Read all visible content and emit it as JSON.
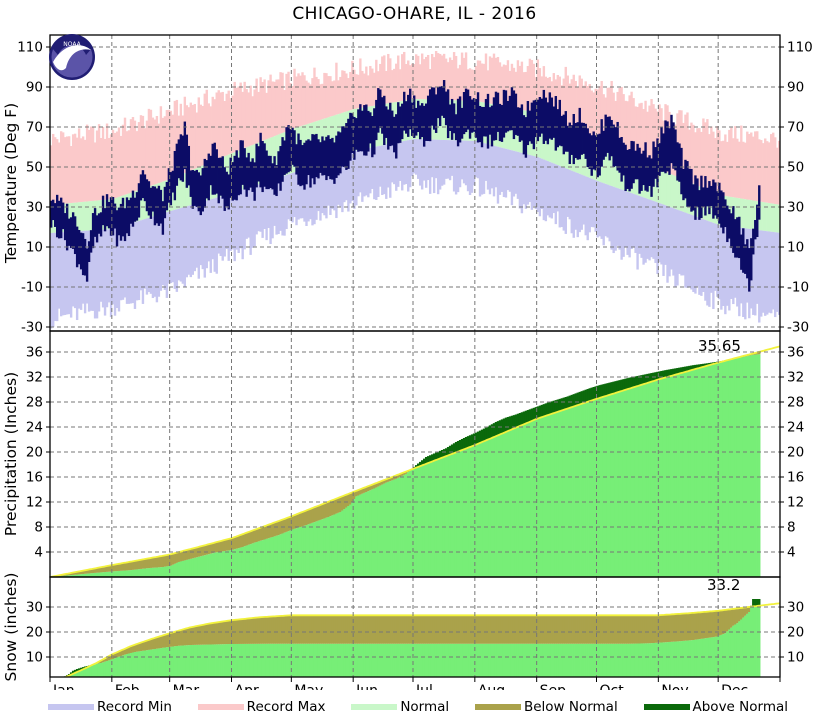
{
  "title": "CHICAGO-OHARE, IL - 2016",
  "logo": {
    "name": "noaa-logo",
    "text": "NOAA"
  },
  "colors": {
    "record_min": "#c6c6f0",
    "record_max": "#fbc9ca",
    "normal_band": "#c9f7c9",
    "actual_temp": "#0c0c66",
    "cumulative_fill": "#77ee77",
    "below_normal": "#aaa24b",
    "above_normal": "#0b690b",
    "normal_line": "#f2f23c",
    "grid": "#777777",
    "border": "#000000",
    "logo_ring": "#201d73",
    "logo_body": "#5b54a8"
  },
  "months": [
    "Jan",
    "Feb",
    "Mar",
    "Apr",
    "May",
    "Jun",
    "Jul",
    "Aug",
    "Sep",
    "Oct",
    "Nov",
    "Dec"
  ],
  "month_start_days": [
    0,
    31,
    60,
    91,
    121,
    152,
    182,
    213,
    244,
    274,
    305,
    335,
    366
  ],
  "days_in_year": 366,
  "data_end_day": 355,
  "legend": [
    {
      "label": "Record Min",
      "color_key": "record_min"
    },
    {
      "label": "Record Max",
      "color_key": "record_max"
    },
    {
      "label": "Normal",
      "color_key": "normal_band"
    },
    {
      "label": "Below Normal",
      "color_key": "below_normal"
    },
    {
      "label": "Above Normal",
      "color_key": "above_normal"
    }
  ],
  "chart_data": [
    {
      "id": "temperature",
      "type": "area",
      "ylabel": "Temperature (Deg F)",
      "yticks": [
        110,
        90,
        70,
        50,
        30,
        10,
        -10,
        -30
      ],
      "ylim": [
        -32,
        117
      ],
      "grid": true,
      "bands": {
        "days": [
          0,
          31,
          60,
          91,
          121,
          152,
          182,
          213,
          244,
          274,
          305,
          335,
          366
        ],
        "record_high": [
          62,
          66,
          76,
          86,
          92,
          97,
          102,
          101,
          97,
          89,
          76,
          65,
          62
        ],
        "normal_high": [
          31,
          34,
          44,
          57,
          69,
          79,
          84,
          83,
          77,
          64,
          49,
          36,
          31
        ],
        "normal_low": [
          17,
          19,
          28,
          37,
          47,
          58,
          64,
          63,
          55,
          43,
          32,
          21,
          17
        ],
        "record_low": [
          -24,
          -18,
          -10,
          8,
          24,
          34,
          44,
          42,
          30,
          16,
          0,
          -16,
          -24
        ]
      },
      "actual": {
        "days": [
          0,
          7,
          14,
          18,
          21,
          28,
          35,
          42,
          46,
          49,
          56,
          63,
          67,
          70,
          74,
          81,
          88,
          95,
          102,
          105,
          112,
          119,
          126,
          133,
          140,
          147,
          154,
          161,
          165,
          172,
          179,
          186,
          193,
          196,
          203,
          210,
          217,
          224,
          231,
          238,
          245,
          252,
          259,
          266,
          273,
          280,
          287,
          294,
          301,
          308,
          311,
          317,
          324,
          331,
          338,
          345,
          350,
          352,
          355
        ],
        "high": [
          35,
          30,
          22,
          12,
          26,
          34,
          30,
          38,
          50,
          42,
          36,
          58,
          70,
          52,
          44,
          62,
          48,
          60,
          55,
          65,
          52,
          72,
          60,
          64,
          62,
          68,
          80,
          78,
          88,
          76,
          88,
          80,
          90,
          92,
          80,
          88,
          82,
          84,
          86,
          78,
          88,
          84,
          74,
          76,
          64,
          78,
          62,
          60,
          58,
          70,
          74,
          52,
          42,
          44,
          34,
          22,
          8,
          20,
          38
        ],
        "low": [
          22,
          14,
          2,
          -6,
          10,
          20,
          12,
          22,
          33,
          28,
          20,
          40,
          46,
          34,
          26,
          40,
          28,
          40,
          36,
          42,
          34,
          50,
          42,
          44,
          44,
          48,
          58,
          58,
          66,
          56,
          68,
          62,
          70,
          72,
          62,
          68,
          62,
          64,
          66,
          58,
          66,
          62,
          54,
          56,
          46,
          56,
          42,
          40,
          38,
          48,
          50,
          34,
          26,
          28,
          18,
          4,
          -12,
          6,
          24
        ]
      }
    },
    {
      "id": "precipitation",
      "type": "area",
      "ylabel": "Precipitation (Inches)",
      "yticks": [
        36,
        32,
        28,
        24,
        20,
        16,
        12,
        8,
        4
      ],
      "ylim": [
        0,
        39.4
      ],
      "grid": true,
      "annotation": "35.65",
      "annotation_value": 35.65,
      "normal": {
        "days": [
          0,
          31,
          60,
          91,
          121,
          152,
          182,
          213,
          244,
          274,
          305,
          335,
          366
        ],
        "values": [
          0,
          1.9,
          3.6,
          6.2,
          9.7,
          13.6,
          17.3,
          21.1,
          25.3,
          28.5,
          31.6,
          34.3,
          36.9
        ]
      },
      "actual": {
        "days": [
          0,
          10,
          20,
          31,
          40,
          48,
          56,
          60,
          64,
          70,
          76,
          82,
          88,
          91,
          96,
          102,
          108,
          114,
          121,
          127,
          133,
          139,
          145,
          150,
          153,
          158,
          163,
          168,
          173,
          178,
          183,
          188,
          193,
          198,
          203,
          208,
          213,
          218,
          223,
          228,
          233,
          238,
          244,
          249,
          254,
          259,
          264,
          270,
          275,
          280,
          285,
          290,
          296,
          302,
          308,
          315,
          322,
          329,
          335,
          341,
          347,
          352,
          355
        ],
        "values": [
          0,
          0.3,
          0.6,
          0.9,
          1.1,
          1.4,
          1.6,
          1.8,
          2.4,
          2.9,
          3.4,
          3.9,
          4.2,
          4.35,
          4.8,
          5.5,
          6.1,
          6.7,
          7.6,
          8.2,
          8.9,
          9.6,
          10.4,
          11.6,
          12.9,
          13.6,
          14.3,
          15.1,
          15.7,
          16.5,
          17.9,
          19.2,
          19.9,
          20.6,
          21.6,
          22.4,
          23.1,
          23.9,
          24.8,
          25.5,
          26.0,
          26.6,
          27.3,
          27.9,
          28.4,
          28.9,
          29.5,
          30.2,
          30.7,
          31.1,
          31.5,
          31.9,
          32.3,
          32.7,
          33.1,
          33.5,
          33.9,
          34.2,
          34.5,
          34.8,
          35.2,
          35.55,
          35.65
        ]
      }
    },
    {
      "id": "snow",
      "type": "area",
      "ylabel": "Snow (inches)",
      "yticks": [
        30,
        20,
        10
      ],
      "ylim": [
        2,
        42
      ],
      "grid": true,
      "annotation": "33.2",
      "annotation_value": 33.2,
      "normal": {
        "days": [
          0,
          8,
          15,
          23,
          31,
          41,
          52,
          60,
          70,
          80,
          91,
          105,
          121,
          305,
          320,
          335,
          350,
          366
        ],
        "values": [
          0,
          2,
          4.5,
          7.5,
          11,
          14.5,
          17.5,
          19.5,
          21.8,
          23.4,
          24.7,
          25.9,
          26.7,
          26.7,
          27.5,
          28.5,
          30,
          31.5
        ]
      },
      "actual": {
        "days": [
          0,
          3,
          6,
          9,
          11,
          13,
          17,
          20,
          25,
          31,
          35,
          38,
          42,
          47,
          52,
          57,
          60,
          64,
          70,
          80,
          90,
          110,
          290,
          300,
          308,
          315,
          322,
          328,
          334,
          338,
          340,
          342,
          344,
          346,
          348,
          350,
          351,
          352,
          355
        ],
        "values": [
          0,
          0.8,
          1.8,
          3.2,
          4.5,
          5.2,
          6.2,
          6.8,
          7.6,
          9.2,
          10.4,
          11.2,
          12,
          12.6,
          13.2,
          13.8,
          14.1,
          14.5,
          14.8,
          15,
          15.2,
          15.3,
          15.3,
          15.5,
          15.9,
          16.3,
          16.8,
          17.5,
          18.2,
          19.5,
          21,
          22.5,
          23.5,
          25,
          26.5,
          28,
          30.5,
          33.2,
          33.2
        ]
      }
    }
  ]
}
